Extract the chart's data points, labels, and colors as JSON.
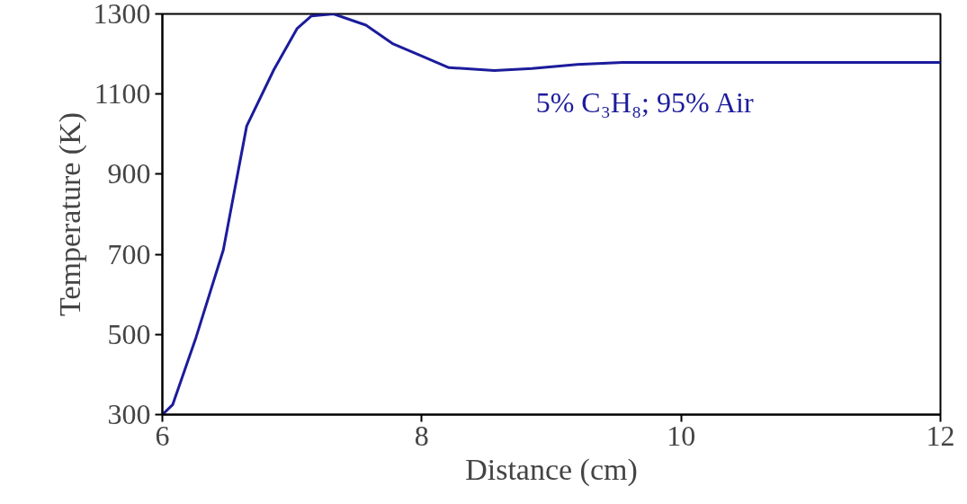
{
  "chart_data": {
    "type": "line",
    "xlabel": "Distance (cm)",
    "ylabel": "Temperature (K)",
    "x": [
      6.0,
      6.08,
      6.26,
      6.47,
      6.65,
      6.86,
      7.04,
      7.15,
      7.32,
      7.57,
      7.78,
      8.0,
      8.21,
      8.56,
      8.85,
      9.2,
      9.55,
      12.0
    ],
    "series": [
      {
        "name": "5% C₃H₈; 95% Air",
        "color": "#1c1c9c",
        "values": [
          300,
          325,
          493,
          711,
          1020,
          1161,
          1264,
          1295,
          1300,
          1272,
          1225,
          1195,
          1166,
          1159,
          1164,
          1174,
          1179,
          1179
        ]
      }
    ],
    "xlim": [
      6,
      12
    ],
    "ylim": [
      300,
      1300
    ],
    "xticks": [
      6,
      8,
      10,
      12
    ],
    "yticks": [
      300,
      500,
      700,
      900,
      1100,
      1300
    ],
    "grid": false,
    "marker": "none",
    "line_style": "solid"
  }
}
